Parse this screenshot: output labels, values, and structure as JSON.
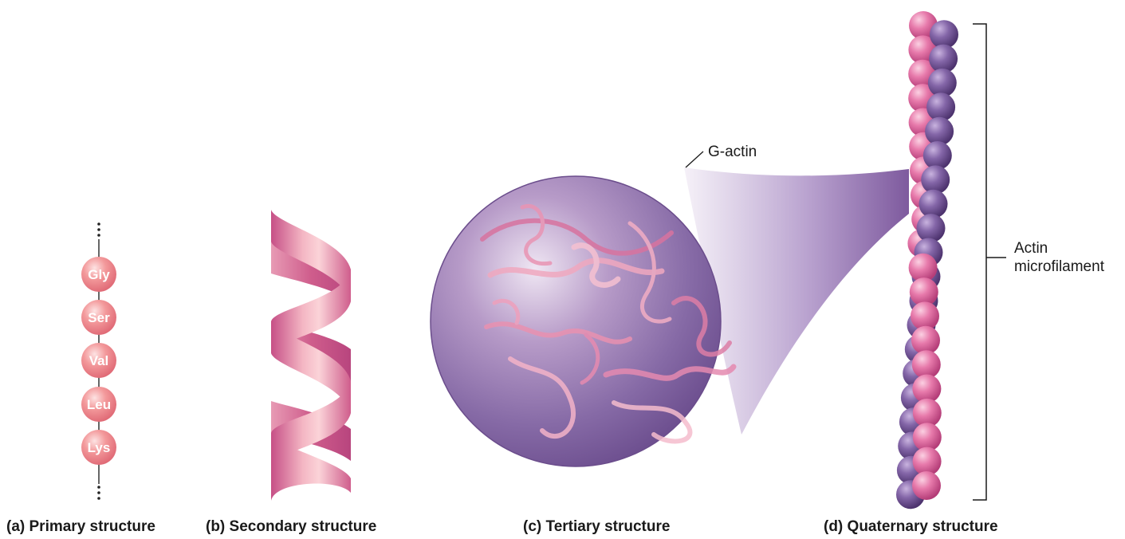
{
  "colors": {
    "bead_pink": "#f0848c",
    "helix_pink": "#d9638f",
    "globe_purple": "#7e5a9e",
    "actin_purple": "#7a5a9a",
    "actin_pink": "#e06aa0"
  },
  "primary": {
    "residues": [
      "Gly",
      "Ser",
      "Val",
      "Leu",
      "Lys"
    ],
    "caption": "(a) Primary structure"
  },
  "secondary": {
    "caption": "(b) Secondary structure"
  },
  "tertiary": {
    "caption": "(c) Tertiary structure",
    "label": "G-actin"
  },
  "quaternary": {
    "caption": "(d) Quaternary structure",
    "label_line1": "Actin",
    "label_line2": "microfilament"
  }
}
